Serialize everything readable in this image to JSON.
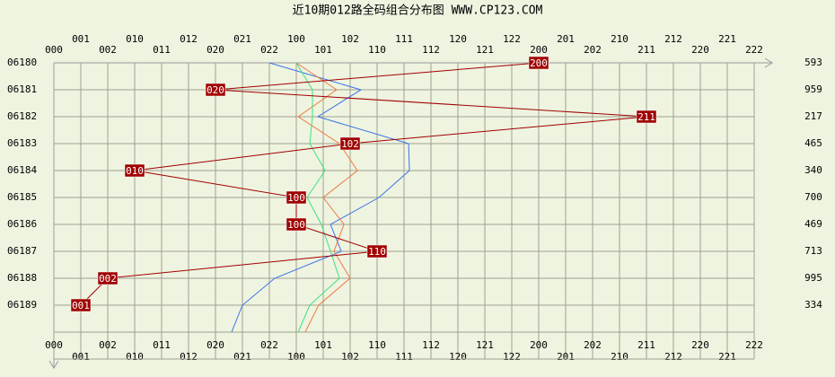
{
  "chart_data": {
    "type": "trend",
    "title": "近10期012路全码组合分布图 WWW.CP123.COM",
    "columns": [
      "000",
      "001",
      "002",
      "010",
      "011",
      "012",
      "020",
      "021",
      "022",
      "100",
      "101",
      "102",
      "110",
      "111",
      "112",
      "120",
      "121",
      "122",
      "200",
      "201",
      "202",
      "210",
      "211",
      "212",
      "220",
      "221",
      "222"
    ],
    "rows": [
      "06180",
      "06181",
      "06182",
      "06183",
      "06184",
      "06185",
      "06186",
      "06187",
      "06188",
      "06189",
      null
    ],
    "totals": [
      593,
      959,
      217,
      465,
      340,
      700,
      469,
      713,
      995,
      334,
      null
    ],
    "picks": [
      "200",
      "020",
      "211",
      "102",
      "010",
      "100",
      "100",
      "110",
      "002",
      "001",
      null
    ],
    "pick_color": "#a00000",
    "xlim": [
      0,
      26
    ],
    "series": [
      {
        "color": "#3b73e8",
        "values": [
          8,
          11.4,
          9.8,
          13.17,
          13.2,
          12.07,
          10.27,
          10.67,
          8.2,
          7,
          6.6
        ]
      },
      {
        "color": "#f07a40",
        "values": [
          9,
          10.5,
          9.07,
          10.6,
          11.27,
          10,
          10.77,
          10.4,
          11,
          9.83,
          9.33
        ]
      },
      {
        "color": "#40e080",
        "values": [
          9,
          9.6,
          9.6,
          9.5,
          10.07,
          9.4,
          9.93,
          10.27,
          10.6,
          9.5,
          9.07
        ]
      }
    ]
  }
}
